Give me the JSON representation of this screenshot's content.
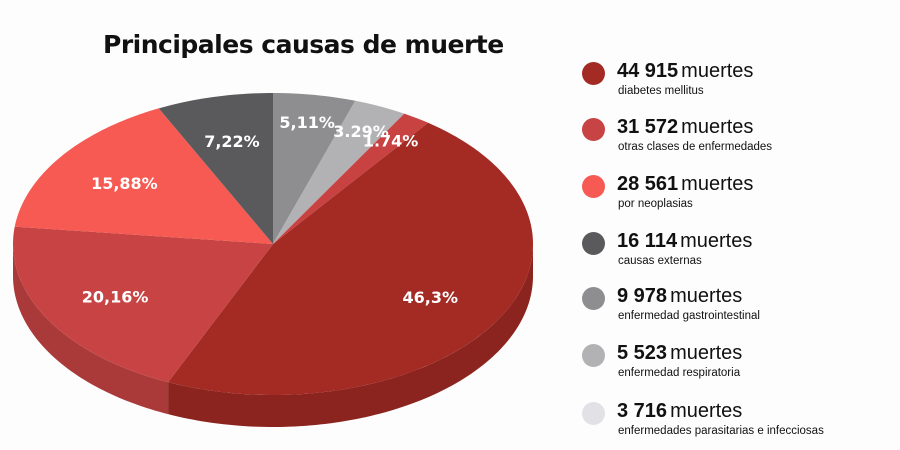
{
  "chart_data": {
    "type": "pie",
    "title": "Principales causas de muerte",
    "slices": [
      {
        "label": "5,11%",
        "value": 5.11,
        "color": "#8e8e90"
      },
      {
        "label": "3.29%",
        "value": 3.29,
        "color": "#b2b2b4"
      },
      {
        "label": "1.74%",
        "value": 1.74,
        "color": "#c94242"
      },
      {
        "label": "46,3%",
        "value": 46.3,
        "color": "#a42a24"
      },
      {
        "label": "20,16%",
        "value": 20.16,
        "color": "#c84444"
      },
      {
        "label": "15,88%",
        "value": 15.88,
        "color": "#f65a52"
      },
      {
        "label": "7,22%",
        "value": 7.22,
        "color": "#5a5a5c"
      }
    ],
    "legend": [
      {
        "count": "44 915",
        "unit": "muertes",
        "description": "diabetes mellitus",
        "color": "#a42a24"
      },
      {
        "count": "31 572",
        "unit": "muertes",
        "description": "otras clases de enfermedades",
        "color": "#c84444"
      },
      {
        "count": "28 561",
        "unit": "muertes",
        "description": "por neoplasias",
        "color": "#f65a52"
      },
      {
        "count": "16 114",
        "unit": "muertes",
        "description": "causas externas",
        "color": "#5a5a5c"
      },
      {
        "count": "9 978",
        "unit": "muertes",
        "description": "enfermedad gastrointestinal",
        "color": "#8e8e90"
      },
      {
        "count": "5 523",
        "unit": "muertes",
        "description": "enfermedad respiratoria",
        "color": "#b2b2b4"
      },
      {
        "count": "3 716",
        "unit": "muertes",
        "description": "enfermedades parasitarias e infecciosas",
        "color": "#e2e2e6"
      }
    ],
    "legend_placement": "right"
  }
}
